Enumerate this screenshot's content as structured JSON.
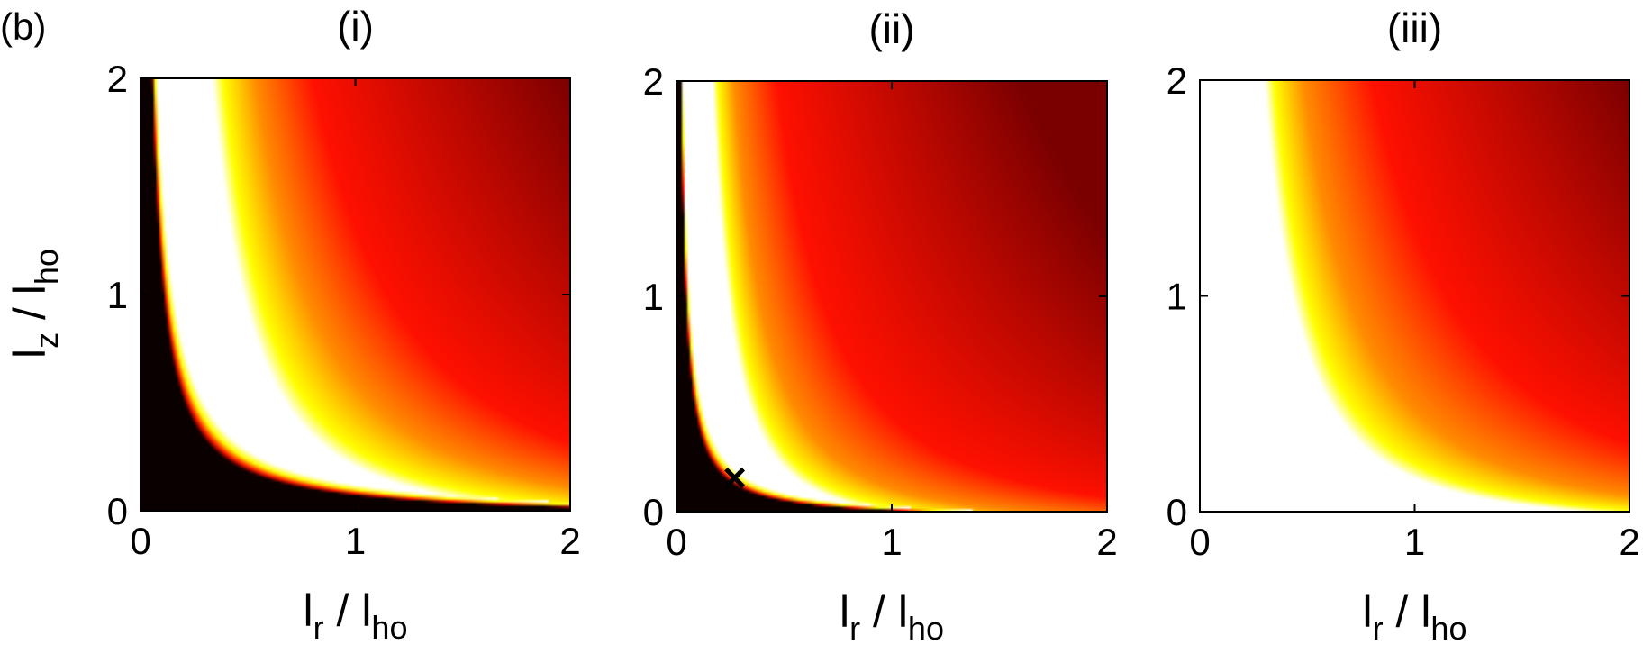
{
  "figure_label": "(b)",
  "colors": {
    "black": "#0a0000",
    "dark_red": "#7a0000",
    "red": "#ff1000",
    "orange": "#ff8c00",
    "yellow": "#ffff00",
    "white": "#ffffff",
    "marker": "#ffffff"
  },
  "chart_data": [
    {
      "type": "heatmap",
      "title": "(i)",
      "xlabel": {
        "main": "l",
        "sub": "r",
        "sep": " / ",
        "main2": "l",
        "sub2": "ho"
      },
      "ylabel": {
        "main": "l",
        "sub": "z",
        "sep": " / ",
        "main2": "l",
        "sub2": "ho"
      },
      "xlim": [
        0,
        2
      ],
      "ylim": [
        0,
        2
      ],
      "xticks": [
        0,
        1,
        2
      ],
      "yticks": [
        0,
        1,
        2
      ],
      "colorscale": [
        "black",
        "white",
        "yellow",
        "orange",
        "red",
        "dark_red"
      ],
      "regions": {
        "black_boundary_c": 0.05,
        "white_boundary_c": 0.3,
        "yellow_c": 0.5,
        "red_c": 1.2,
        "dark_red_c": 3.0
      },
      "marker": null
    },
    {
      "type": "heatmap",
      "title": "(ii)",
      "xlabel": {
        "main": "l",
        "sub": "r",
        "sep": " / ",
        "main2": "l",
        "sub2": "ho"
      },
      "ylabel": null,
      "xlim": [
        0,
        2
      ],
      "ylim": [
        0,
        2
      ],
      "xticks": [
        0,
        1,
        2
      ],
      "yticks": [
        0,
        1,
        2
      ],
      "colorscale": [
        "black",
        "white",
        "yellow",
        "orange",
        "red",
        "dark_red"
      ],
      "regions": {
        "black_boundary_c": 0.02,
        "white_boundary_c": 0.12,
        "yellow_c": 0.25,
        "red_c": 0.7,
        "dark_red_c": 2.4
      },
      "marker": {
        "symbol": "×",
        "x": 0.27,
        "y": 0.15
      }
    },
    {
      "type": "heatmap",
      "title": "(iii)",
      "xlabel": {
        "main": "l",
        "sub": "r",
        "sep": " / ",
        "main2": "l",
        "sub2": "ho"
      },
      "ylabel": null,
      "xlim": [
        0,
        2
      ],
      "ylim": [
        0,
        2
      ],
      "xticks": [
        0,
        1,
        2
      ],
      "yticks": [
        0,
        1,
        2
      ],
      "colorscale": [
        "white",
        "yellow",
        "orange",
        "red",
        "dark_red"
      ],
      "regions": {
        "black_boundary_c": null,
        "white_boundary_c": null,
        "yellow_c": 0.45,
        "red_c": 1.2,
        "dark_red_c": 3.0
      },
      "marker": null
    }
  ]
}
